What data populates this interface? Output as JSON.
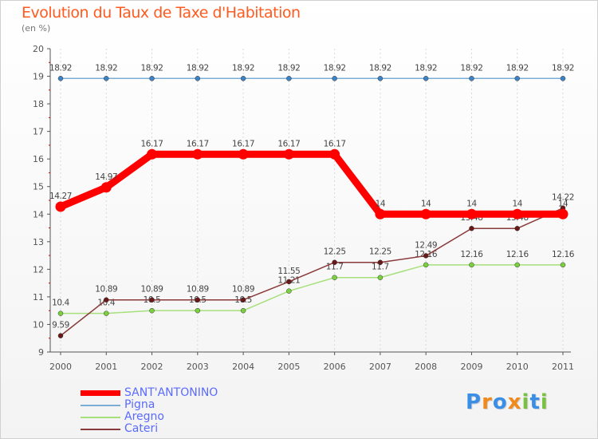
{
  "chart_data": {
    "type": "line",
    "title": "Evolution du Taux de Taxe d'Habitation",
    "subtitle": "(en %)",
    "categories": [
      "2000",
      "2001",
      "2002",
      "2003",
      "2004",
      "2005",
      "2006",
      "2007",
      "2008",
      "2009",
      "2010",
      "2011"
    ],
    "ylim": [
      9,
      20
    ],
    "yticks": [
      9,
      10,
      11,
      12,
      13,
      14,
      15,
      16,
      17,
      18,
      19,
      20
    ],
    "series": [
      {
        "name": "SANT'ANTONINO",
        "color": "#ff0000",
        "marker_color": "#ff0000",
        "values": [
          14.27,
          14.97,
          16.17,
          16.17,
          16.17,
          16.17,
          16.17,
          14,
          14,
          14,
          14,
          14
        ],
        "labels": [
          "14.27",
          "14.97",
          "16.17",
          "16.17",
          "16.17",
          "16.17",
          "16.17",
          "14",
          "14",
          "14",
          "14",
          "14"
        ]
      },
      {
        "name": "Pigna",
        "color": "#7aaed6",
        "marker_color": "#3d82c4",
        "values": [
          18.92,
          18.92,
          18.92,
          18.92,
          18.92,
          18.92,
          18.92,
          18.92,
          18.92,
          18.92,
          18.92,
          18.92
        ],
        "labels": [
          "18.92",
          "18.92",
          "18.92",
          "18.92",
          "18.92",
          "18.92",
          "18.92",
          "18.92",
          "18.92",
          "18.92",
          "18.92",
          "18.92"
        ]
      },
      {
        "name": "Aregno",
        "color": "#a6e07a",
        "marker_color": "#7ccf3e",
        "values": [
          10.4,
          10.4,
          10.5,
          10.5,
          10.5,
          11.21,
          11.7,
          11.7,
          12.16,
          12.16,
          12.16,
          12.16
        ],
        "labels": [
          "10.4",
          "10.4",
          "10.5",
          "10.5",
          "10.5",
          "11.21",
          "11.7",
          "11.7",
          "12.16",
          "12.16",
          "12.16",
          "12.16"
        ]
      },
      {
        "name": "Cateri",
        "color": "#8a3a3a",
        "marker_color": "#6a1818",
        "values": [
          9.59,
          10.89,
          10.89,
          10.89,
          10.89,
          11.55,
          12.25,
          12.25,
          12.49,
          13.48,
          13.48,
          14.22
        ],
        "labels": [
          "9.59",
          "10.89",
          "10.89",
          "10.89",
          "10.89",
          "11.55",
          "12.25",
          "12.25",
          "12.49",
          "13.48",
          "13.48",
          "14.22"
        ]
      }
    ]
  },
  "legend": {
    "items": [
      {
        "label": "SANT'ANTONINO",
        "color": "#ff0000"
      },
      {
        "label": "Pigna",
        "color": "#7aaed6"
      },
      {
        "label": "Aregno",
        "color": "#a6e07a"
      },
      {
        "label": "Cateri",
        "color": "#8a3a3a"
      }
    ]
  },
  "logo": {
    "letters": [
      "P",
      "r",
      "o",
      "x",
      "i",
      "t",
      "i"
    ],
    "colors": [
      "#3a8ee6",
      "#f08a1c",
      "#3a8ee6",
      "#f08a1c",
      "#7ac143",
      "#3a8ee6",
      "#7ac143"
    ]
  }
}
